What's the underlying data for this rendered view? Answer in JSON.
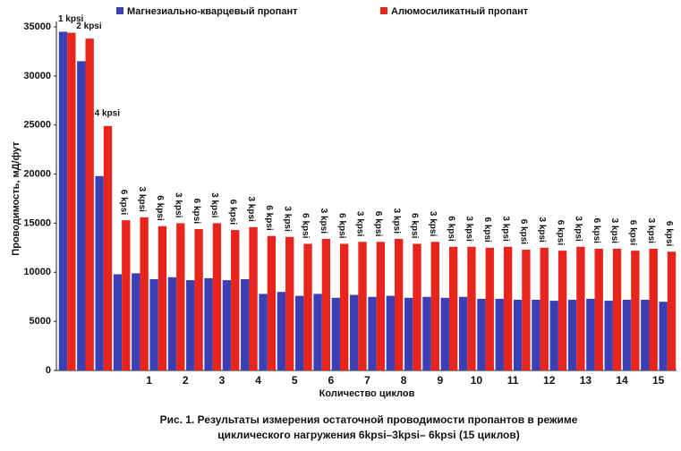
{
  "chart_data": {
    "type": "bar",
    "categories": [
      "1 kpsi",
      "2 kpsi",
      "4 kpsi",
      "6 kpsi",
      "3 kpsi",
      "6 kpsi",
      "3 kpsi",
      "6 kpsi",
      "3 kpsi",
      "6 kpsi",
      "3 kpsi",
      "6 kpsi",
      "3 kpsi",
      "6 kpsi",
      "3 kpsi",
      "6 kpsi",
      "3 kpsi",
      "6 kpsi",
      "3 kpsi",
      "6 kpsi",
      "3 kpsi",
      "6 kpsi",
      "3 kpsi",
      "6 kpsi",
      "3 kpsi",
      "6 kpsi",
      "3 kpsi",
      "6 kpsi",
      "3 kpsi",
      "6 kpsi",
      "3 kpsi",
      "6 kpsi",
      "3 kpsi",
      "6 kpsi"
    ],
    "cycle_labels": [
      "1",
      "2",
      "3",
      "4",
      "5",
      "6",
      "7",
      "8",
      "9",
      "10",
      "11",
      "12",
      "13",
      "14",
      "15"
    ],
    "series": [
      {
        "name": "Магнезиально-кварцевый пропант",
        "color": "#3a40b4",
        "values": [
          34500,
          31500,
          19800,
          9800,
          9900,
          9300,
          9500,
          9200,
          9400,
          9200,
          9300,
          7800,
          8000,
          7600,
          7800,
          7400,
          7700,
          7500,
          7600,
          7400,
          7500,
          7400,
          7500,
          7300,
          7300,
          7200,
          7200,
          7100,
          7200,
          7300,
          7100,
          7200,
          7200,
          7000
        ]
      },
      {
        "name": "Алюмосиликатный пропант",
        "color": "#e8251d",
        "values": [
          34400,
          33800,
          24900,
          15300,
          15600,
          14700,
          15000,
          14400,
          15000,
          14300,
          14600,
          13700,
          13600,
          12900,
          13400,
          12900,
          13100,
          13100,
          13400,
          12900,
          13100,
          12600,
          12600,
          12500,
          12600,
          12300,
          12500,
          12200,
          12600,
          12400,
          12400,
          12200,
          12400,
          12100
        ]
      }
    ],
    "ylabel": "Проводимость, мД/фут",
    "xlabel": "Количество циклов",
    "caption": [
      "Рис. 1. Результаты измерения остаточной проводимости пропантов в режиме",
      "циклического нагружения 6kpsi–3kpsi– 6kpsi (15 циклов)"
    ],
    "ylim": [
      0,
      35000
    ],
    "yticks": [
      0,
      5000,
      10000,
      15000,
      20000,
      25000,
      30000,
      35000
    ],
    "grid": false
  }
}
